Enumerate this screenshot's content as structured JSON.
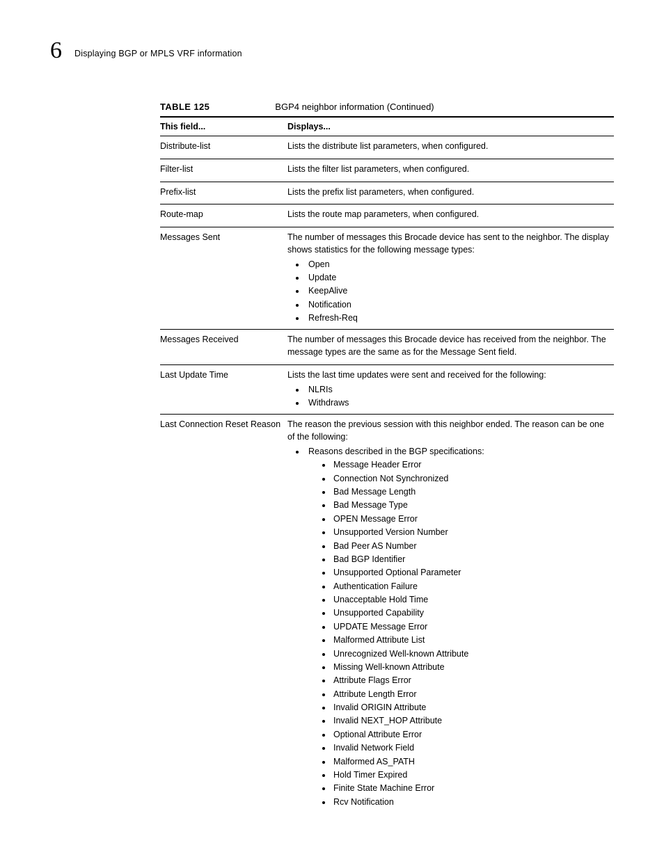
{
  "header": {
    "chapter_number": "6",
    "section_title": "Displaying BGP or MPLS VRF information"
  },
  "table": {
    "label": "TABLE 125",
    "title": "BGP4 neighbor information  (Continued)",
    "columns": {
      "field": "This field...",
      "displays": "Displays..."
    },
    "rows": [
      {
        "field": "Distribute-list",
        "text": "Lists the distribute list parameters, when configured."
      },
      {
        "field": "Filter-list",
        "text": "Lists the filter list parameters, when configured."
      },
      {
        "field": "Prefix-list",
        "text": "Lists the prefix list parameters, when configured."
      },
      {
        "field": "Route-map",
        "text": "Lists the route map parameters, when configured."
      },
      {
        "field": "Messages Sent",
        "text": "The number of messages this Brocade device has sent to the neighbor. The display shows statistics for the following message types:",
        "bullets": [
          "Open",
          "Update",
          "KeepAlive",
          "Notification",
          "Refresh-Req"
        ]
      },
      {
        "field": "Messages Received",
        "text": "The number of messages this Brocade device has received from the neighbor. The message types are the same as for the Message Sent field."
      },
      {
        "field": "Last Update Time",
        "text": "Lists the last time updates were sent and received for the following:",
        "bullets": [
          "NLRIs",
          "Withdraws"
        ]
      },
      {
        "field": "Last Connection Reset Reason",
        "text": "The reason the previous session with this neighbor ended. The reason can be one of the following:",
        "bullets_nested": [
          {
            "text": "Reasons described in the BGP specifications:",
            "sub": [
              "Message Header Error",
              "Connection Not Synchronized",
              "Bad Message Length",
              "Bad Message Type",
              "OPEN Message Error",
              "Unsupported Version Number",
              "Bad Peer AS Number",
              "Bad BGP Identifier",
              "Unsupported Optional Parameter",
              "Authentication Failure",
              "Unacceptable Hold Time",
              "Unsupported Capability",
              "UPDATE Message Error",
              "Malformed Attribute List",
              "Unrecognized Well-known Attribute",
              "Missing Well-known Attribute",
              "Attribute Flags Error",
              "Attribute Length Error",
              "Invalid ORIGIN Attribute",
              "Invalid NEXT_HOP Attribute",
              "Optional Attribute Error",
              "Invalid Network Field",
              "Malformed AS_PATH",
              "Hold Timer Expired",
              "Finite State Machine Error",
              "Rcv Notification"
            ]
          }
        ]
      }
    ]
  }
}
